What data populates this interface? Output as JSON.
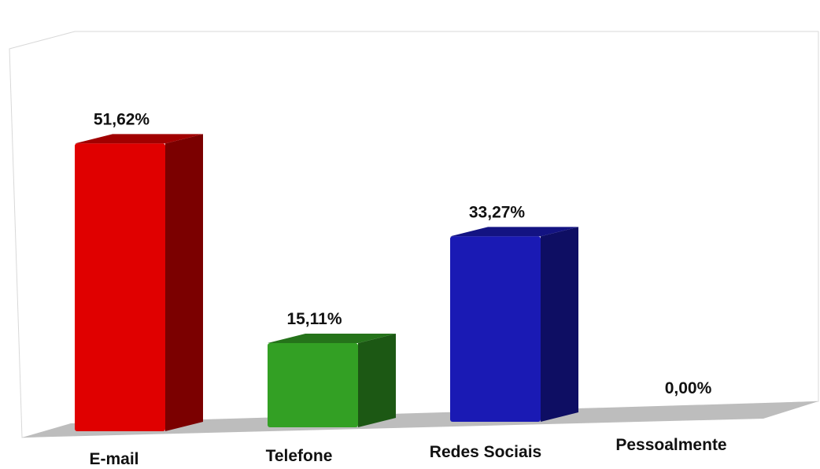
{
  "chart_data": {
    "type": "bar",
    "categories": [
      "E-mail",
      "Telefone",
      "Redes Sociais",
      "Pessoalmente"
    ],
    "values": [
      51.62,
      15.11,
      33.27,
      0.0
    ],
    "data_labels": [
      "51,62%",
      "15,11%",
      "33,27%",
      "0,00%"
    ],
    "colors": [
      "#e00000",
      "#33a024",
      "#1a1ab4",
      "#888888"
    ],
    "ylim": [
      0,
      60
    ],
    "grid": false,
    "legend": "none"
  }
}
